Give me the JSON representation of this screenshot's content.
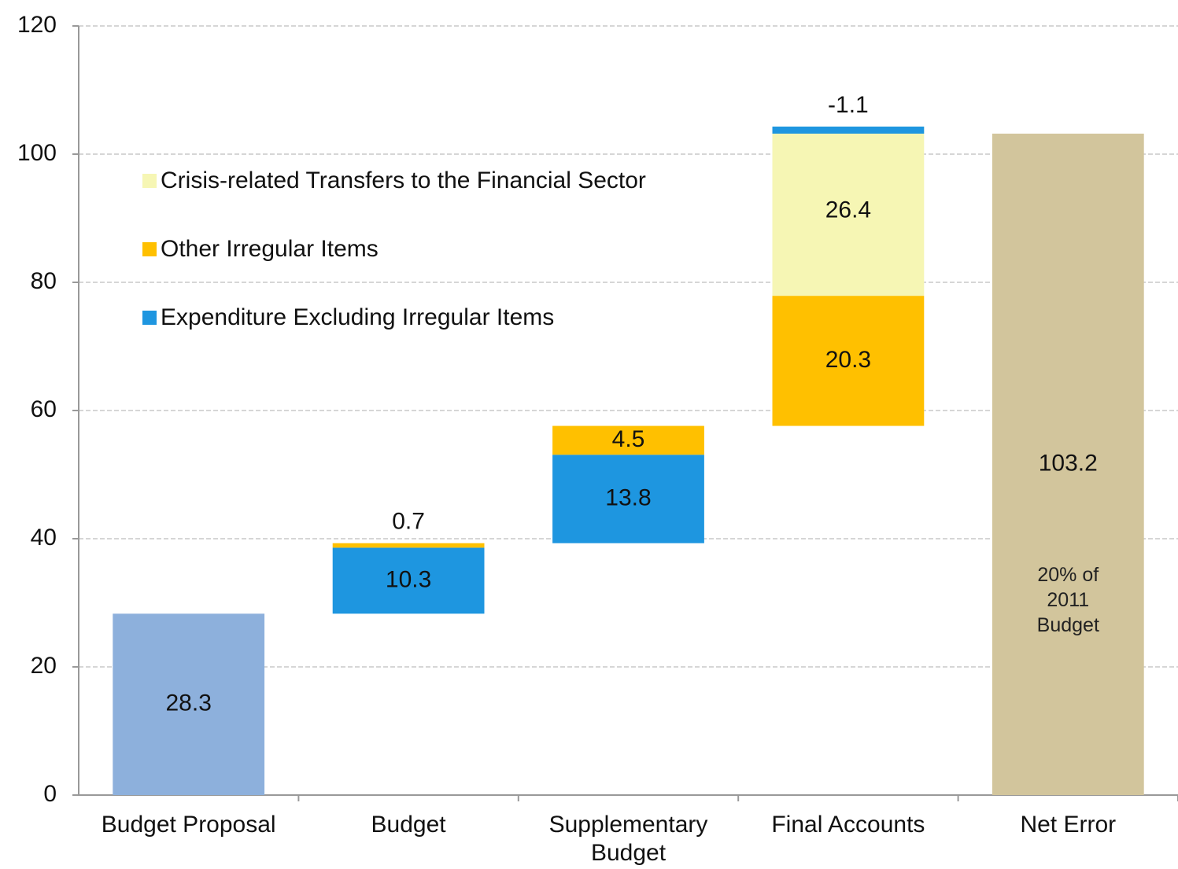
{
  "chart_data": {
    "type": "waterfall",
    "categories": [
      "Budget Proposal",
      "Budget",
      "Supplementary Budget",
      "Final Accounts",
      "Net Error"
    ],
    "totals": [
      28.3,
      null,
      null,
      null,
      103.2
    ],
    "total_colors": [
      "#8DB0DC",
      null,
      null,
      null,
      "#D2C59C"
    ],
    "series": [
      {
        "name": "Crisis-related Transfers to the Financial Sector",
        "color": "#F6F6B4",
        "values": [
          null,
          null,
          null,
          26.4,
          null
        ]
      },
      {
        "name": "Other Irregular Items",
        "color": "#FFC000",
        "values": [
          null,
          0.7,
          4.5,
          20.3,
          null
        ]
      },
      {
        "name": "Expenditure Excluding Irregular Items",
        "color": "#1E96E0",
        "values": [
          null,
          10.3,
          13.8,
          -1.1,
          null
        ]
      }
    ],
    "annotation": "20% of 2011 Budget",
    "ylim": [
      0,
      120
    ],
    "yticks": [
      0,
      20,
      40,
      60,
      80,
      100,
      120
    ],
    "grid": true
  }
}
